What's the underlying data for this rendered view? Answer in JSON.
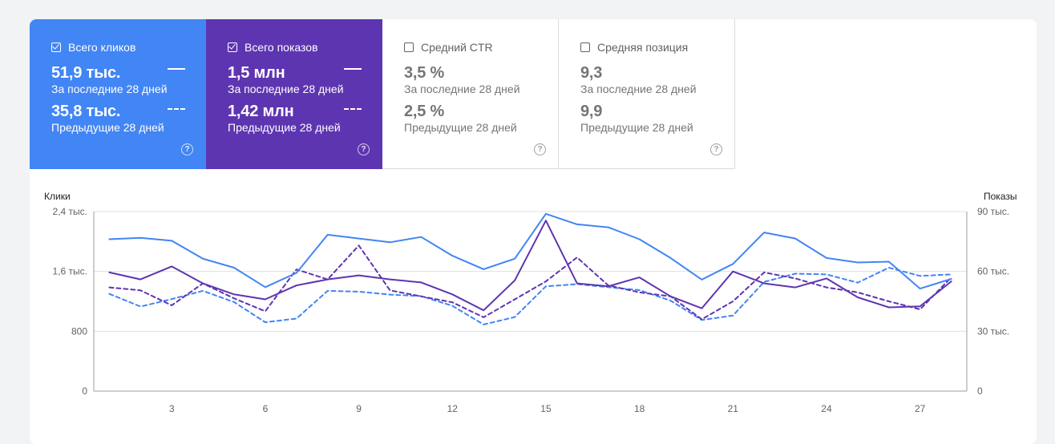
{
  "metrics": [
    {
      "id": "clicks",
      "label": "Всего кликов",
      "checked": true,
      "current_value": "51,9 тыс.",
      "current_label": "За последние 28 дней",
      "previous_value": "35,8 тыс.",
      "previous_label": "Предыдущие 28 дней",
      "color": "#4285f4"
    },
    {
      "id": "impressions",
      "label": "Всего показов",
      "checked": true,
      "current_value": "1,5 млн",
      "current_label": "За последние 28 дней",
      "previous_value": "1,42 млн",
      "previous_label": "Предыдущие 28 дней",
      "color": "#5e35b1"
    },
    {
      "id": "ctr",
      "label": "Средний CTR",
      "checked": false,
      "current_value": "3,5 %",
      "current_label": "За последние 28 дней",
      "previous_value": "2,5 %",
      "previous_label": "Предыдущие 28 дней"
    },
    {
      "id": "position",
      "label": "Средняя позиция",
      "checked": false,
      "current_value": "9,3",
      "current_label": "За последние 28 дней",
      "previous_value": "9,9",
      "previous_label": "Предыдущие 28 дней"
    }
  ],
  "help_icon": "help-circle-icon",
  "help_glyph": "?",
  "chart_data": {
    "type": "line",
    "left_axis_title": "Клики",
    "right_axis_title": "Показы",
    "left_ticks": [
      "0",
      "800",
      "1,6 тыс.",
      "2,4 тыс."
    ],
    "left_tick_values": [
      0,
      800,
      1600,
      2400
    ],
    "right_ticks": [
      "0",
      "30 тыс.",
      "60 тыс.",
      "90 тыс."
    ],
    "right_tick_values": [
      0,
      30000,
      60000,
      90000
    ],
    "left_ylim": [
      0,
      2400
    ],
    "right_ylim": [
      0,
      90000
    ],
    "x": [
      1,
      2,
      3,
      4,
      5,
      6,
      7,
      8,
      9,
      10,
      11,
      12,
      13,
      14,
      15,
      16,
      17,
      18,
      19,
      20,
      21,
      22,
      23,
      24,
      25,
      26,
      27,
      28
    ],
    "x_tick_labels": [
      "3",
      "6",
      "9",
      "12",
      "15",
      "18",
      "21",
      "24",
      "27"
    ],
    "x_tick_values": [
      3,
      6,
      9,
      12,
      15,
      18,
      21,
      24,
      27
    ],
    "grid": true,
    "series": [
      {
        "axis": "left",
        "style": "solid",
        "color": "#4285f4",
        "values": [
          2030,
          2050,
          2010,
          1770,
          1650,
          1390,
          1580,
          2090,
          2040,
          1990,
          2060,
          1810,
          1630,
          1770,
          2370,
          2230,
          2190,
          2030,
          1780,
          1490,
          1700,
          2120,
          2040,
          1780,
          1720,
          1730,
          1370,
          1500
        ]
      },
      {
        "axis": "left",
        "style": "dashed",
        "color": "#4285f4",
        "values": [
          1300,
          1130,
          1230,
          1340,
          1190,
          920,
          970,
          1340,
          1330,
          1290,
          1270,
          1140,
          890,
          990,
          1400,
          1430,
          1390,
          1350,
          1210,
          950,
          1010,
          1460,
          1570,
          1560,
          1450,
          1650,
          1540,
          1560
        ]
      },
      {
        "axis": "right",
        "style": "solid",
        "color": "#5e35b1",
        "values": [
          59500,
          56000,
          62500,
          54000,
          48500,
          46000,
          53000,
          56000,
          58000,
          56000,
          54500,
          48500,
          40500,
          55500,
          85500,
          54000,
          52500,
          57000,
          47500,
          41500,
          60000,
          54000,
          52000,
          56500,
          47000,
          42000,
          42500,
          55000
        ]
      },
      {
        "axis": "right",
        "style": "dashed",
        "color": "#5e35b1",
        "values": [
          52000,
          50500,
          43000,
          54000,
          46500,
          40000,
          61000,
          56000,
          73000,
          50500,
          47500,
          44500,
          37000,
          46000,
          55000,
          67000,
          53000,
          49500,
          47500,
          36000,
          45000,
          59500,
          56500,
          52000,
          49500,
          45000,
          41000,
          57000
        ]
      }
    ]
  }
}
